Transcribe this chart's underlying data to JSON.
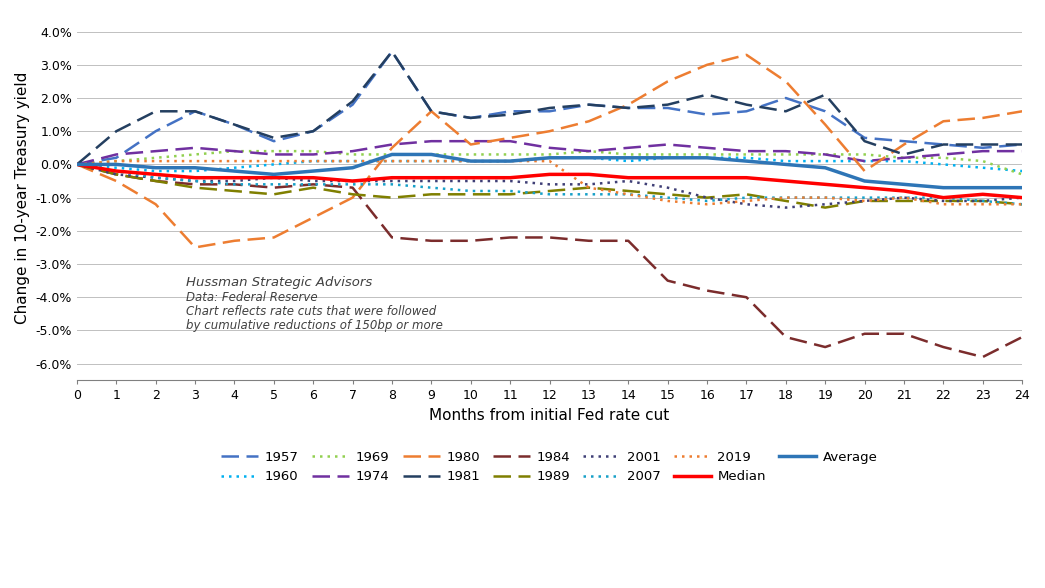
{
  "xlabel": "Months from initial Fed rate cut",
  "ylabel": "Change in 10-year Treasury yield",
  "xlim": [
    0,
    24
  ],
  "ylim": [
    -0.065,
    0.045
  ],
  "yticks": [
    -0.06,
    -0.05,
    -0.04,
    -0.03,
    -0.02,
    -0.01,
    0.0,
    0.01,
    0.02,
    0.03,
    0.04
  ],
  "xticks": [
    0,
    1,
    2,
    3,
    4,
    5,
    6,
    7,
    8,
    9,
    10,
    11,
    12,
    13,
    14,
    15,
    16,
    17,
    18,
    19,
    20,
    21,
    22,
    23,
    24
  ],
  "annotation_lines": [
    "Hussman Strategic Advisors",
    "Data: Federal Reserve",
    "Chart reflects rate cuts that were followed",
    "by cumulative reductions of 150bp or more"
  ],
  "series": {
    "1957": {
      "color": "#4472C4",
      "linestyle": "dashed",
      "linewidth": 1.8,
      "values": [
        0.0,
        0.002,
        0.01,
        0.016,
        0.012,
        0.007,
        0.01,
        0.018,
        0.034,
        0.016,
        0.014,
        0.016,
        0.016,
        0.018,
        0.017,
        0.017,
        0.015,
        0.016,
        0.02,
        0.016,
        0.008,
        0.007,
        0.006,
        0.005,
        0.006
      ]
    },
    "1960": {
      "color": "#00B0F0",
      "linestyle": "dotted",
      "linewidth": 1.8,
      "values": [
        0.0,
        -0.001,
        -0.002,
        -0.002,
        -0.001,
        0.0,
        0.001,
        0.001,
        0.001,
        0.001,
        0.001,
        0.001,
        0.002,
        0.002,
        0.001,
        0.002,
        0.002,
        0.002,
        0.001,
        0.001,
        0.001,
        0.001,
        0.0,
        -0.001,
        -0.002
      ]
    },
    "1969": {
      "color": "#92D050",
      "linestyle": "dotted",
      "linewidth": 1.8,
      "values": [
        0.0,
        0.001,
        0.002,
        0.003,
        0.004,
        0.004,
        0.004,
        0.003,
        0.003,
        0.003,
        0.003,
        0.003,
        0.003,
        0.004,
        0.003,
        0.003,
        0.003,
        0.003,
        0.003,
        0.003,
        0.003,
        0.002,
        0.002,
        0.001,
        -0.003
      ]
    },
    "1974": {
      "color": "#7030A0",
      "linestyle": "dashed",
      "linewidth": 1.8,
      "values": [
        0.0,
        0.003,
        0.004,
        0.005,
        0.004,
        0.003,
        0.003,
        0.004,
        0.006,
        0.007,
        0.007,
        0.007,
        0.005,
        0.004,
        0.005,
        0.006,
        0.005,
        0.004,
        0.004,
        0.003,
        0.001,
        0.002,
        0.003,
        0.004,
        0.004
      ]
    },
    "1980": {
      "color": "#ED7D31",
      "linestyle": "dashed",
      "linewidth": 1.8,
      "values": [
        0.0,
        -0.005,
        -0.012,
        -0.025,
        -0.023,
        -0.022,
        -0.016,
        -0.01,
        0.005,
        0.016,
        0.006,
        0.008,
        0.01,
        0.013,
        0.018,
        0.025,
        0.03,
        0.033,
        0.025,
        0.012,
        -0.002,
        0.006,
        0.013,
        0.014,
        0.016
      ]
    },
    "1981": {
      "color": "#243F60",
      "linestyle": "dashed",
      "linewidth": 1.8,
      "values": [
        0.0,
        0.01,
        0.016,
        0.016,
        0.012,
        0.008,
        0.01,
        0.019,
        0.034,
        0.016,
        0.014,
        0.015,
        0.017,
        0.018,
        0.017,
        0.018,
        0.021,
        0.018,
        0.016,
        0.021,
        0.007,
        0.003,
        0.006,
        0.006,
        0.006
      ]
    },
    "1984": {
      "color": "#7B2C2C",
      "linestyle": "dashed",
      "linewidth": 1.8,
      "values": [
        0.0,
        -0.003,
        -0.005,
        -0.006,
        -0.006,
        -0.007,
        -0.006,
        -0.007,
        -0.022,
        -0.023,
        -0.023,
        -0.022,
        -0.022,
        -0.023,
        -0.023,
        -0.035,
        -0.038,
        -0.04,
        -0.052,
        -0.055,
        -0.051,
        -0.051,
        -0.055,
        -0.058,
        -0.052
      ]
    },
    "1989": {
      "color": "#7F7F00",
      "linestyle": "dashed",
      "linewidth": 1.8,
      "values": [
        0.0,
        -0.003,
        -0.005,
        -0.007,
        -0.008,
        -0.009,
        -0.007,
        -0.009,
        -0.01,
        -0.009,
        -0.009,
        -0.009,
        -0.008,
        -0.007,
        -0.008,
        -0.009,
        -0.01,
        -0.009,
        -0.011,
        -0.013,
        -0.011,
        -0.011,
        -0.011,
        -0.011,
        -0.012
      ]
    },
    "2001": {
      "color": "#3F3F76",
      "linestyle": "dotted",
      "linewidth": 1.8,
      "values": [
        0.0,
        -0.003,
        -0.004,
        -0.005,
        -0.005,
        -0.004,
        -0.005,
        -0.005,
        -0.005,
        -0.005,
        -0.005,
        -0.005,
        -0.006,
        -0.006,
        -0.005,
        -0.007,
        -0.01,
        -0.012,
        -0.013,
        -0.012,
        -0.011,
        -0.01,
        -0.011,
        -0.011,
        -0.01
      ]
    },
    "2007": {
      "color": "#17A0C8",
      "linestyle": "dotted",
      "linewidth": 1.8,
      "values": [
        0.0,
        -0.002,
        -0.004,
        -0.005,
        -0.006,
        -0.006,
        -0.006,
        -0.006,
        -0.006,
        -0.007,
        -0.008,
        -0.008,
        -0.009,
        -0.009,
        -0.009,
        -0.01,
        -0.011,
        -0.01,
        -0.01,
        -0.01,
        -0.01,
        -0.01,
        -0.01,
        -0.011,
        -0.012
      ]
    },
    "2019": {
      "color": "#ED7D31",
      "linestyle": "dotted",
      "linewidth": 1.8,
      "values": [
        0.0,
        0.001,
        0.001,
        0.001,
        0.001,
        0.001,
        0.001,
        0.001,
        0.001,
        0.001,
        0.001,
        0.001,
        0.001,
        -0.007,
        -0.009,
        -0.011,
        -0.012,
        -0.011,
        -0.01,
        -0.01,
        -0.011,
        -0.01,
        -0.012,
        -0.012,
        -0.012
      ]
    },
    "Median": {
      "color": "#FF0000",
      "linestyle": "solid",
      "linewidth": 2.5,
      "values": [
        0.0,
        -0.002,
        -0.003,
        -0.004,
        -0.004,
        -0.004,
        -0.004,
        -0.005,
        -0.004,
        -0.004,
        -0.004,
        -0.004,
        -0.003,
        -0.003,
        -0.004,
        -0.004,
        -0.004,
        -0.004,
        -0.005,
        -0.006,
        -0.007,
        -0.008,
        -0.01,
        -0.009,
        -0.01
      ]
    },
    "Average": {
      "color": "#2E75B6",
      "linestyle": "solid",
      "linewidth": 2.5,
      "values": [
        0.0,
        0.0,
        -0.001,
        -0.001,
        -0.002,
        -0.003,
        -0.002,
        -0.001,
        0.003,
        0.003,
        0.001,
        0.001,
        0.002,
        0.002,
        0.002,
        0.002,
        0.002,
        0.001,
        0.0,
        -0.001,
        -0.005,
        -0.006,
        -0.007,
        -0.007,
        -0.007
      ]
    }
  },
  "legend_order": [
    "1957",
    "1960",
    "1969",
    "1974",
    "1980",
    "1981",
    "1984",
    "1989",
    "2001",
    "2007",
    "2019",
    "Median",
    "Average"
  ],
  "background_color": "#FFFFFF",
  "gridcolor": "#C0C0C0"
}
